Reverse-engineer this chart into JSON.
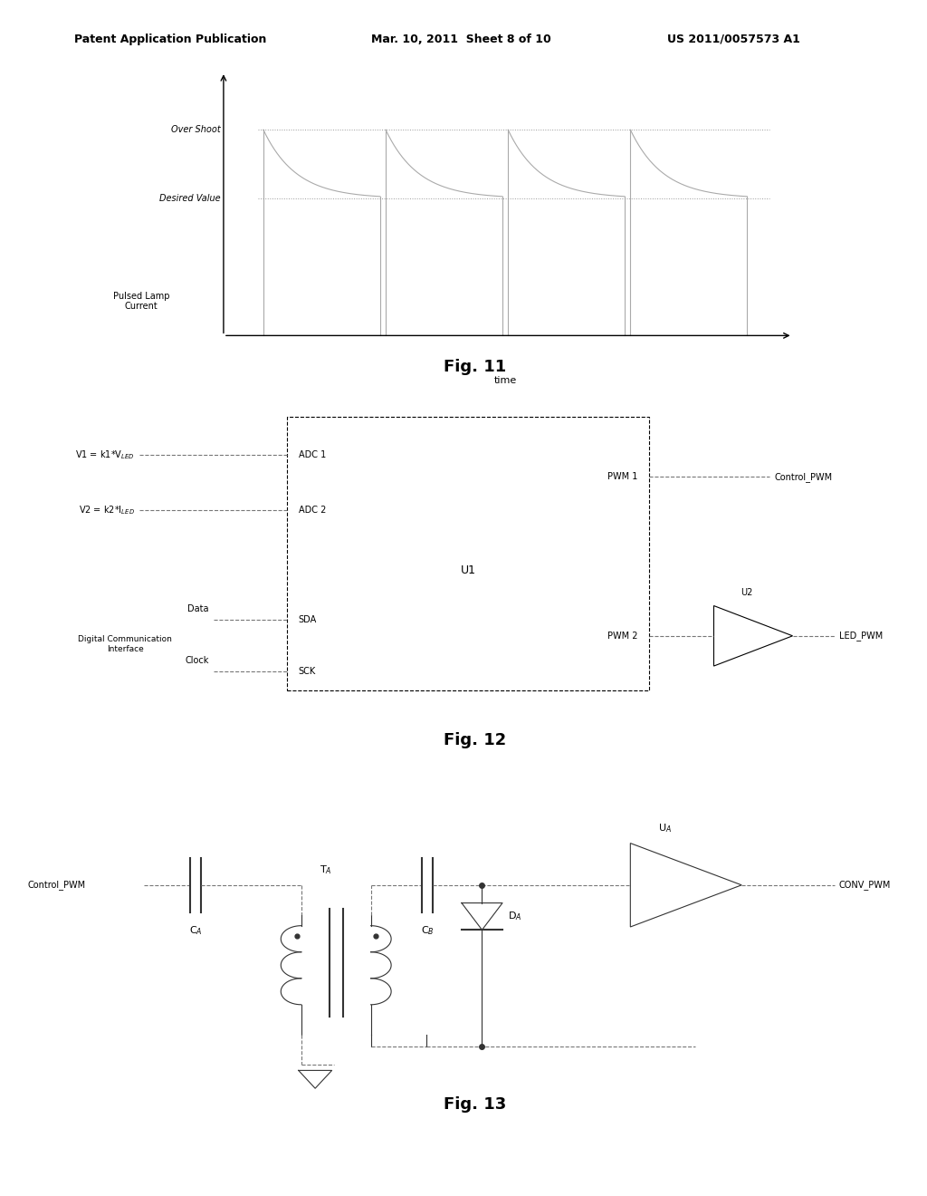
{
  "header_left": "Patent Application Publication",
  "header_mid": "Mar. 10, 2011  Sheet 8 of 10",
  "header_right": "US 2011/0057573 A1",
  "fig11_label": "Fig. 11",
  "fig12_label": "Fig. 12",
  "fig13_label": "Fig. 13",
  "fig11_ylabel_top": "Over Shoot",
  "fig11_ylabel_mid": "Desired Value",
  "fig11_ylabel_bot": "Pulsed Lamp\nCurrent",
  "fig11_xlabel": "time",
  "background": "#ffffff",
  "line_color": "#aaaaaa",
  "text_color": "#000000"
}
